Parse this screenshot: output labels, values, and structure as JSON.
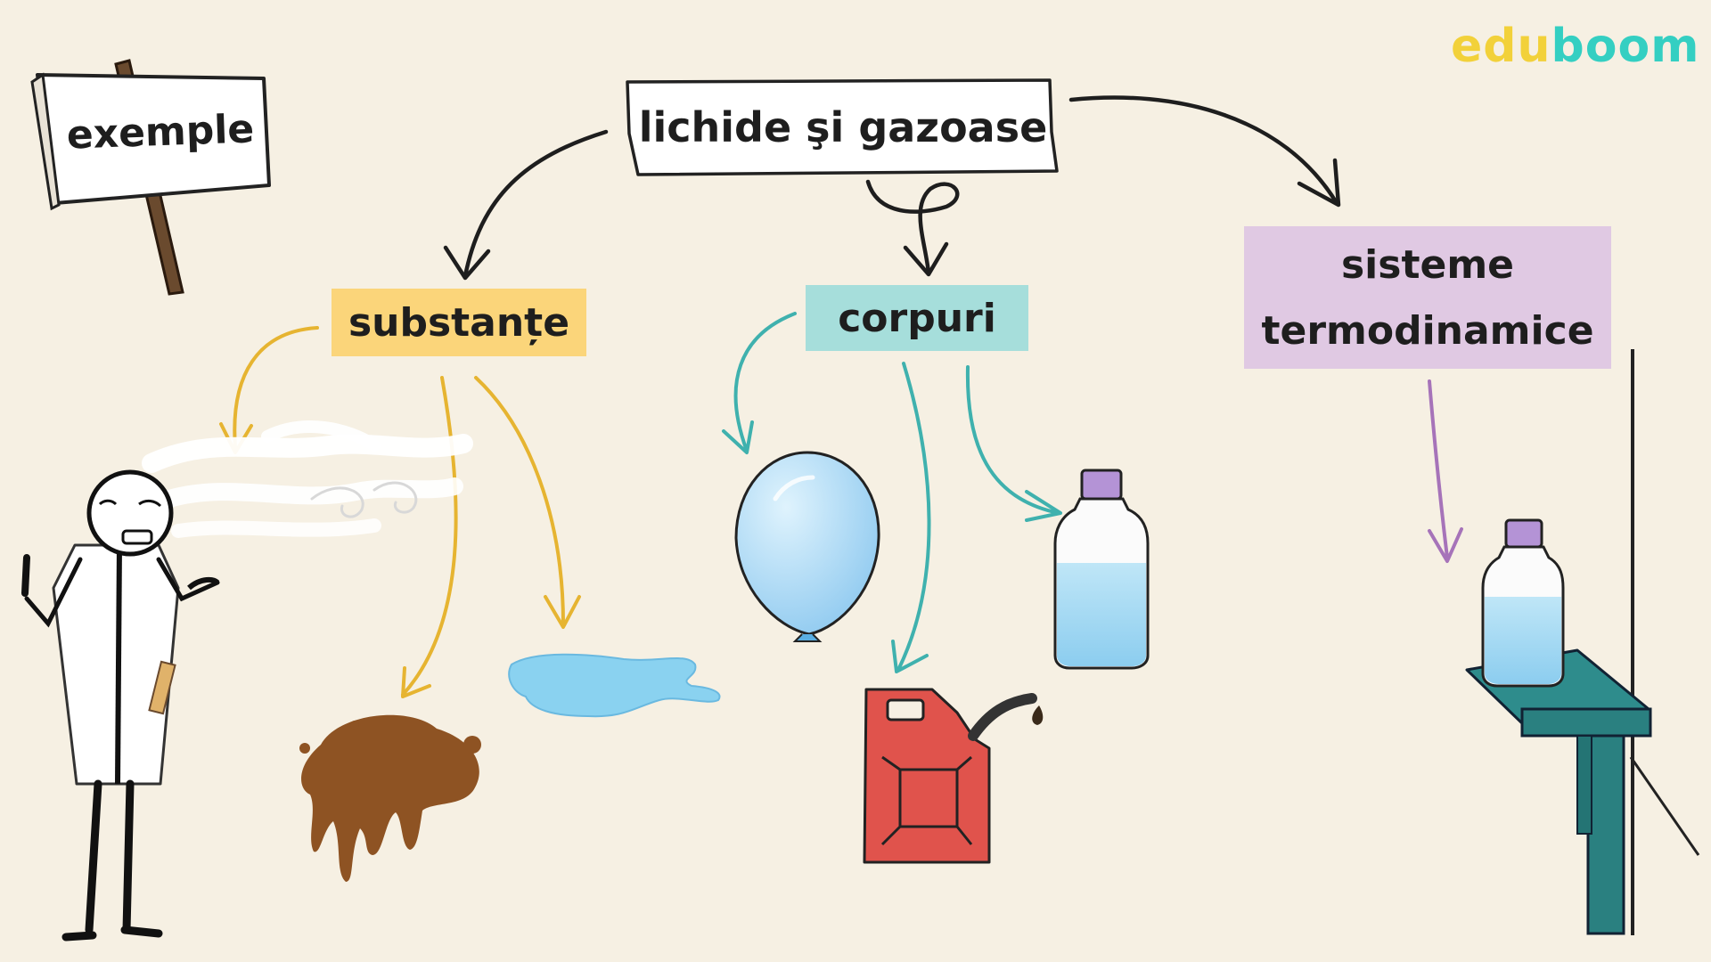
{
  "logo": {
    "part1": "edu",
    "part2": "boom",
    "color1": "#f2d13a",
    "color2": "#34cfc2"
  },
  "sign": {
    "text": "exemple"
  },
  "root": {
    "text": "lichide şi gazoase"
  },
  "nodes": [
    {
      "id": "substante",
      "text": "substanțe",
      "color": "#fbd57a",
      "arrow_color": "#e6b431"
    },
    {
      "id": "corpuri",
      "text": "corpuri",
      "color": "#a6dedb",
      "arrow_color": "#3fb1ae"
    },
    {
      "id": "sisteme",
      "text": "sisteme termodinamice",
      "line1": "sisteme",
      "line2": "termodinamice",
      "color": "#e0c9e3",
      "arrow_color": "#a673b9"
    }
  ],
  "examples": {
    "substante": [
      "air-cloud",
      "mud-splash",
      "water-puddle"
    ],
    "corpuri": [
      "balloon",
      "gas-canister",
      "water-bottle"
    ],
    "sisteme": [
      "bottle-on-table"
    ]
  },
  "colors": {
    "background": "#f6f0e3",
    "ink": "#1e1e1e"
  }
}
